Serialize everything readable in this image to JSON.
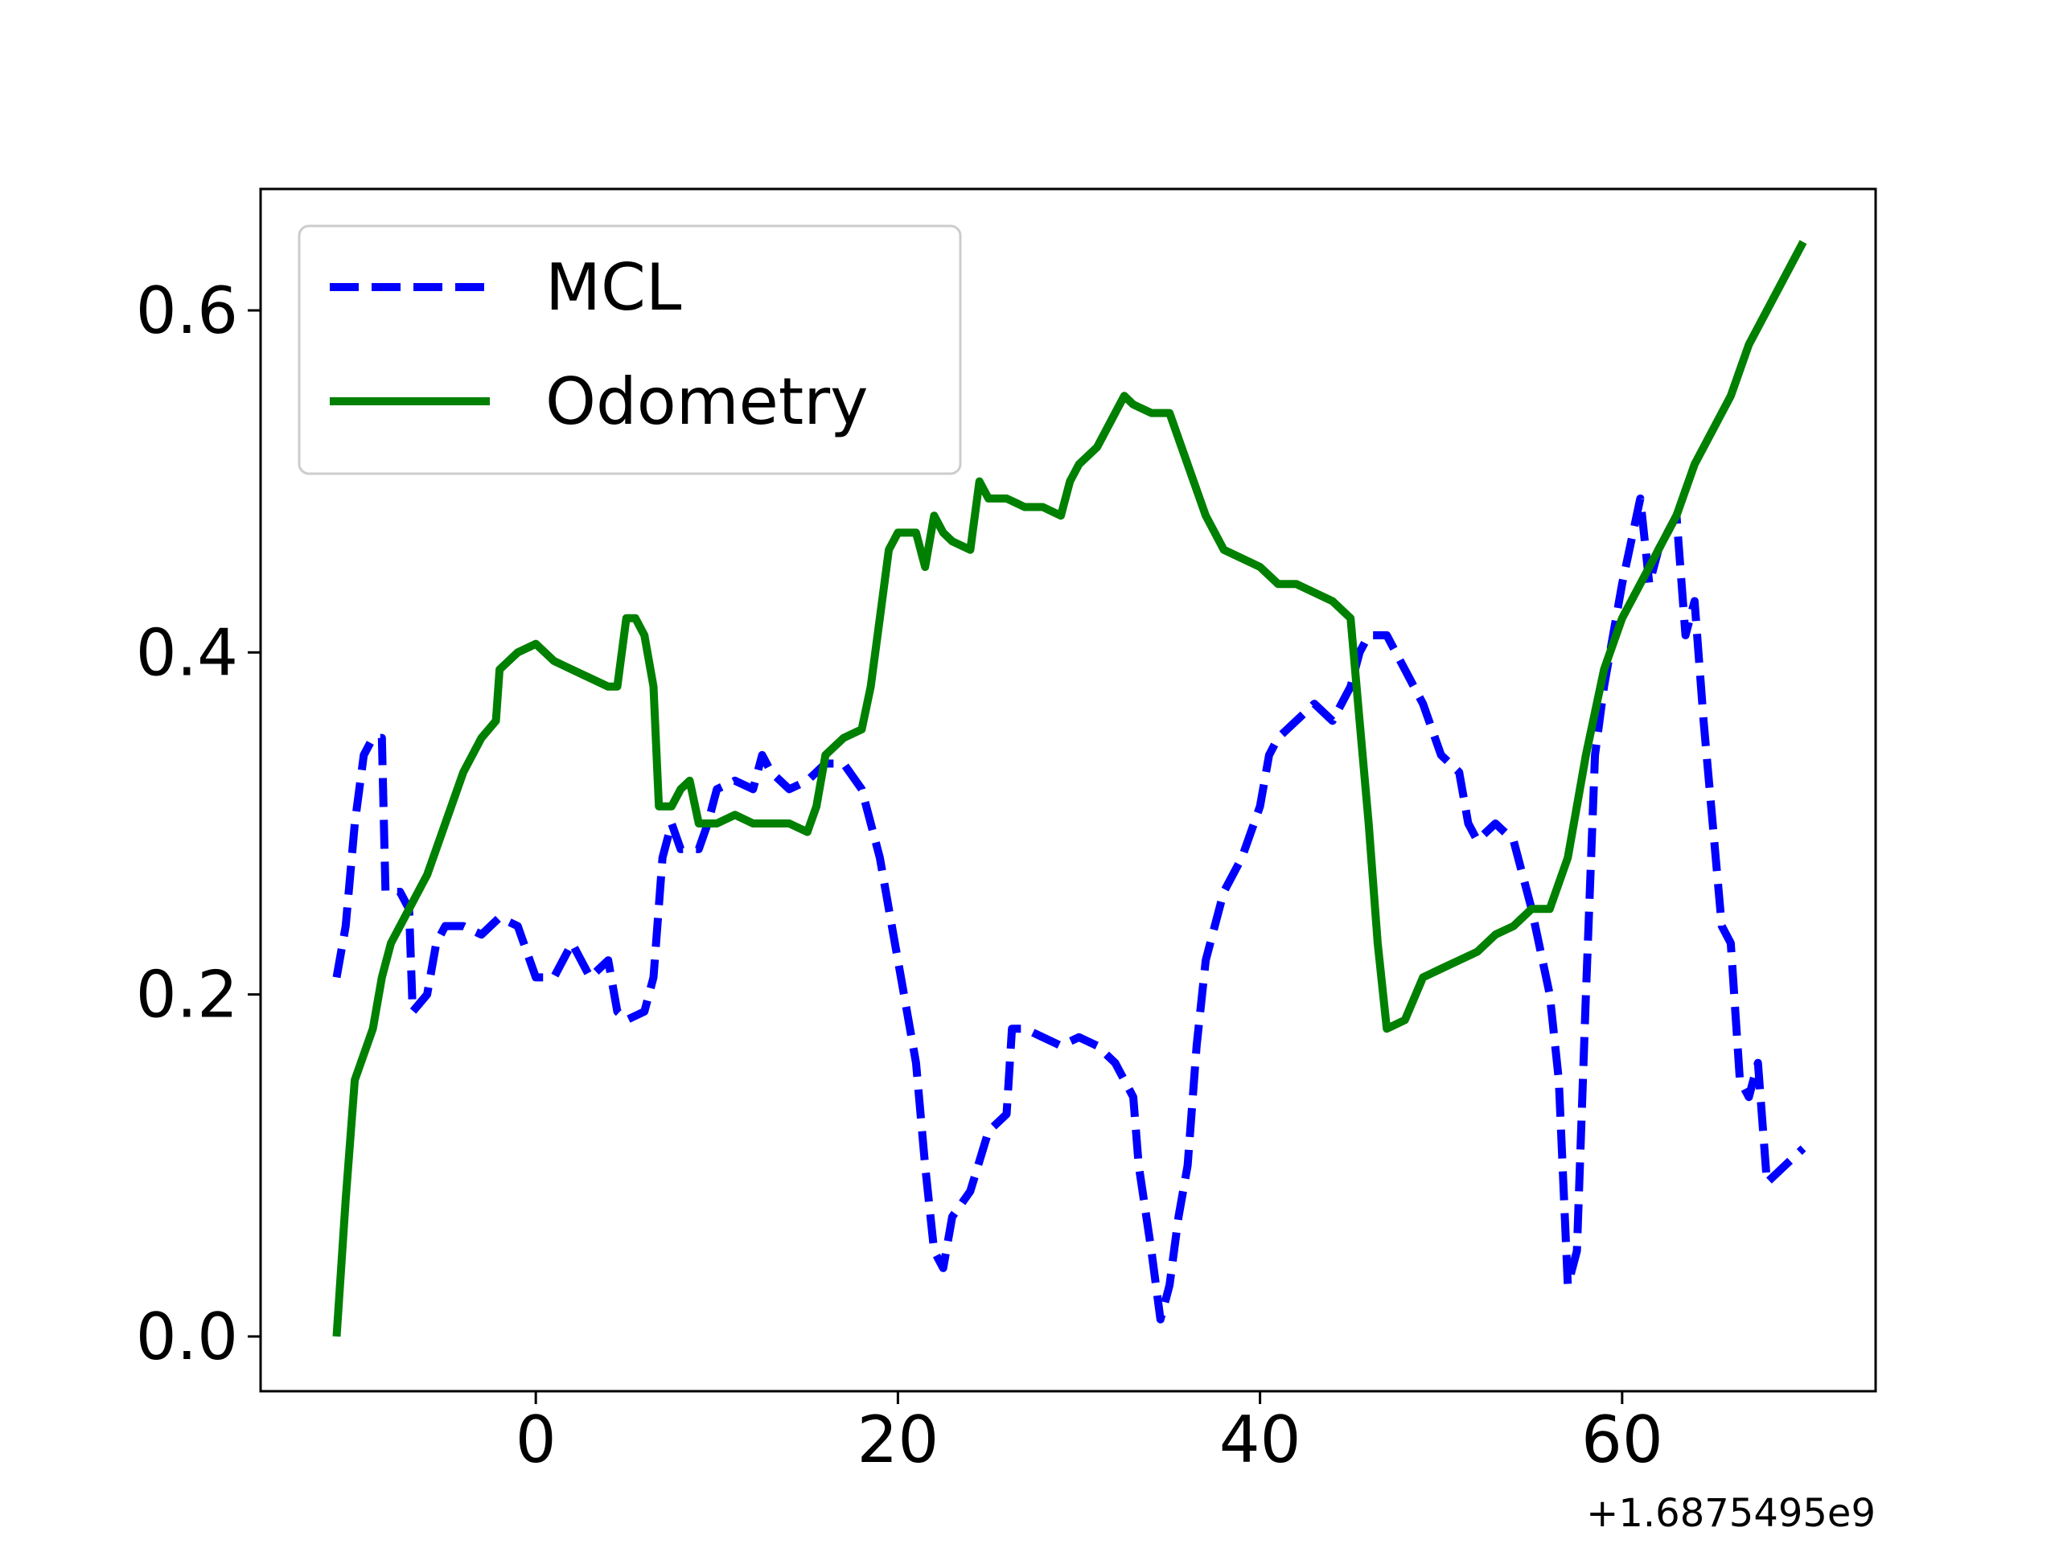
{
  "chart_data": {
    "type": "line",
    "x_offset_label": "+1.6875495e9",
    "xlim": [
      -15.2,
      74.0
    ],
    "ylim": [
      -0.032,
      0.671
    ],
    "xticks": [
      0,
      20,
      40,
      60
    ],
    "yticks": [
      {
        "value": 0,
        "label": "0.0"
      },
      0.2,
      0.4,
      0.6
    ],
    "legend": "upper left",
    "series": [
      {
        "name": "MCL",
        "color": "#0000ff",
        "style": "dashed",
        "x": [
          -11,
          -10.5,
          -10,
          -9.5,
          -9,
          -8.5,
          -8.3,
          -7.5,
          -7,
          -6.8,
          -6,
          -5.5,
          -5,
          -4,
          -3,
          -2,
          -1,
          0,
          1,
          2,
          3,
          4,
          4.5,
          5,
          6,
          6.5,
          7,
          7.5,
          8,
          9,
          9.5,
          10,
          11,
          12,
          12.5,
          13,
          14,
          15,
          16,
          17,
          18,
          19,
          19.5,
          20,
          21,
          21.5,
          22,
          22.5,
          23,
          24,
          25,
          26,
          26.3,
          27,
          28,
          29,
          30,
          31,
          32,
          33,
          33.3,
          34,
          34.5,
          35,
          35.5,
          36,
          36.5,
          37,
          37.5,
          38,
          39,
          40,
          40.5,
          41,
          42,
          43,
          44,
          45,
          45.5,
          46,
          47,
          48,
          49,
          50,
          51,
          51.5,
          52,
          53,
          54,
          55,
          56,
          56.5,
          57,
          57.5,
          58,
          58.5,
          59,
          60,
          61,
          61.5,
          62,
          63,
          63.5,
          64,
          64.5,
          65,
          65.5,
          66,
          66.5,
          67,
          67.5,
          68,
          69,
          70
        ],
        "values": [
          0.21,
          0.24,
          0.3,
          0.34,
          0.35,
          0.35,
          0.26,
          0.26,
          0.25,
          0.19,
          0.2,
          0.23,
          0.24,
          0.24,
          0.235,
          0.245,
          0.24,
          0.21,
          0.21,
          0.23,
          0.21,
          0.22,
          0.19,
          0.185,
          0.19,
          0.21,
          0.28,
          0.3,
          0.285,
          0.285,
          0.3,
          0.32,
          0.325,
          0.32,
          0.34,
          0.33,
          0.32,
          0.325,
          0.335,
          0.335,
          0.32,
          0.28,
          0.25,
          0.22,
          0.16,
          0.1,
          0.05,
          0.04,
          0.07,
          0.085,
          0.12,
          0.13,
          0.18,
          0.18,
          0.175,
          0.17,
          0.175,
          0.17,
          0.16,
          0.14,
          0.1,
          0.05,
          0.01,
          0.03,
          0.07,
          0.1,
          0.17,
          0.22,
          0.24,
          0.26,
          0.28,
          0.31,
          0.34,
          0.35,
          0.36,
          0.37,
          0.36,
          0.38,
          0.4,
          0.41,
          0.41,
          0.39,
          0.37,
          0.34,
          0.33,
          0.3,
          0.29,
          0.3,
          0.29,
          0.25,
          0.2,
          0.15,
          0.03,
          0.05,
          0.2,
          0.34,
          0.38,
          0.44,
          0.49,
          0.44,
          0.46,
          0.48,
          0.41,
          0.43,
          0.36,
          0.3,
          0.24,
          0.23,
          0.15,
          0.14,
          0.16,
          0.09,
          0.1,
          0.11
        ]
      },
      {
        "name": "Odometry",
        "color": "#008000",
        "style": "solid",
        "x": [
          -11,
          -10.5,
          -10,
          -9,
          -8.5,
          -8,
          -7,
          -6,
          -5,
          -4,
          -3,
          -2.2,
          -2,
          -1,
          0,
          1,
          2,
          3,
          4,
          4.5,
          5,
          5.5,
          6,
          6.5,
          6.8,
          7.5,
          8,
          8.5,
          9,
          10,
          11,
          12,
          13,
          14,
          15,
          15.5,
          16,
          17,
          18,
          18.5,
          19,
          19.5,
          20,
          21,
          21.5,
          22,
          22.5,
          23,
          24,
          24.5,
          25,
          26,
          27,
          28,
          29,
          29.5,
          30,
          31,
          32,
          32.5,
          33,
          34,
          35,
          36,
          37,
          38,
          39,
          40,
          41,
          42,
          43,
          44,
          45,
          45.5,
          46,
          46.5,
          47,
          48,
          49,
          50,
          51,
          52,
          53,
          54,
          55,
          56,
          57,
          58,
          59,
          60,
          61,
          62,
          63,
          64,
          65,
          66,
          67,
          68,
          69,
          70
        ],
        "values": [
          0.0,
          0.08,
          0.15,
          0.18,
          0.21,
          0.23,
          0.25,
          0.27,
          0.3,
          0.33,
          0.35,
          0.36,
          0.39,
          0.4,
          0.405,
          0.395,
          0.39,
          0.385,
          0.38,
          0.38,
          0.42,
          0.42,
          0.41,
          0.38,
          0.31,
          0.31,
          0.32,
          0.325,
          0.3,
          0.3,
          0.305,
          0.3,
          0.3,
          0.3,
          0.295,
          0.31,
          0.34,
          0.35,
          0.355,
          0.38,
          0.42,
          0.46,
          0.47,
          0.47,
          0.45,
          0.48,
          0.47,
          0.465,
          0.46,
          0.5,
          0.49,
          0.49,
          0.485,
          0.485,
          0.48,
          0.5,
          0.51,
          0.52,
          0.54,
          0.55,
          0.545,
          0.54,
          0.54,
          0.51,
          0.48,
          0.46,
          0.455,
          0.45,
          0.44,
          0.44,
          0.435,
          0.43,
          0.42,
          0.36,
          0.3,
          0.23,
          0.18,
          0.185,
          0.21,
          0.215,
          0.22,
          0.225,
          0.235,
          0.24,
          0.25,
          0.25,
          0.28,
          0.34,
          0.39,
          0.42,
          0.44,
          0.46,
          0.48,
          0.51,
          0.53,
          0.55,
          0.58,
          0.6,
          0.62,
          0.64
        ]
      }
    ]
  }
}
